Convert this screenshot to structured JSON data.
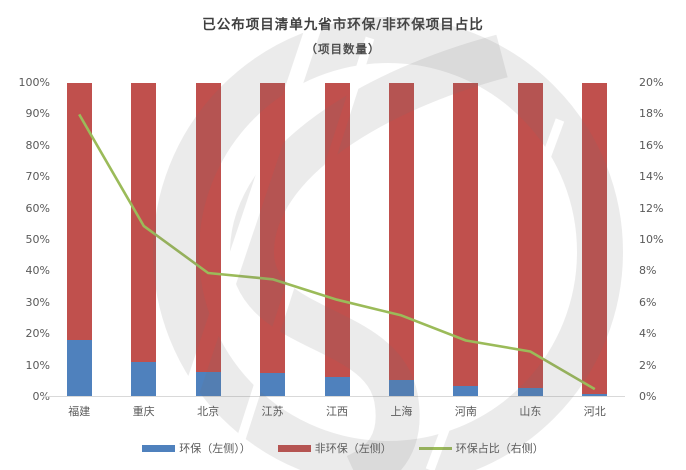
{
  "chart_data": {
    "type": "bar",
    "subtype": "stacked-percent-with-line-overlay",
    "title": "已公布项目清单九省市环保/非环保项目占比",
    "subtitle": "（项目数量）",
    "categories": [
      "福建",
      "重庆",
      "北京",
      "江苏",
      "江西",
      "上海",
      "河南",
      "山东",
      "河北"
    ],
    "series": [
      {
        "name": "环保（左侧））",
        "type": "bar",
        "axis": "left",
        "color": "#4F81BD",
        "values": [
          18,
          11,
          8,
          7.5,
          6.3,
          5.3,
          3.5,
          3,
          1
        ]
      },
      {
        "name": "非环保（左侧）",
        "type": "bar",
        "axis": "left",
        "color": "#C0504D",
        "values": [
          82,
          89,
          92,
          92.5,
          93.7,
          94.7,
          96.5,
          97,
          99
        ]
      },
      {
        "name": "环保占比（右侧）",
        "type": "line",
        "axis": "right",
        "color": "#9BBB59",
        "values": [
          18,
          10.9,
          7.9,
          7.5,
          6.2,
          5.2,
          3.6,
          2.9,
          0.5
        ]
      }
    ],
    "left_axis": {
      "min": 0,
      "max": 100,
      "step": 10,
      "ticks": [
        "100%",
        "90%",
        "80%",
        "70%",
        "60%",
        "50%",
        "40%",
        "30%",
        "20%",
        "10%",
        "0%"
      ]
    },
    "right_axis": {
      "min": 0,
      "max": 20,
      "step": 2,
      "ticks": [
        "20%",
        "18%",
        "16%",
        "14%",
        "12%",
        "10%",
        "8%",
        "6%",
        "4%",
        "2%",
        "0%"
      ]
    },
    "grid": false,
    "stacked": true,
    "legend_position": "bottom",
    "colors": {
      "title_text": "#3f3f3f",
      "axis_text": "#595959",
      "axis_line": "#d9d9d9",
      "watermark": "#e3e3e3"
    }
  }
}
